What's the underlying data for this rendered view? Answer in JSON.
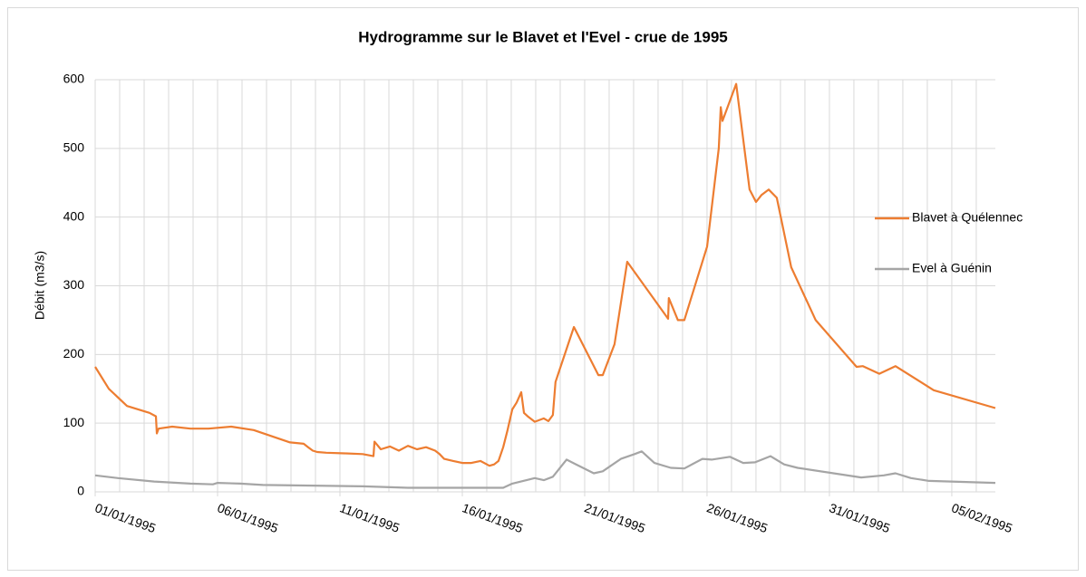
{
  "chart_data": {
    "type": "line",
    "title": "Hydrogramme sur le Blavet et l'Evel - crue de 1995",
    "y_label": "Débit (m3/s)",
    "xlim": [
      0,
      36.78
    ],
    "xticks": [
      {
        "value": 0,
        "label": "01/01/1995"
      },
      {
        "value": 5,
        "label": "06/01/1995"
      },
      {
        "value": 10,
        "label": "11/01/1995"
      },
      {
        "value": 15,
        "label": "16/01/1995"
      },
      {
        "value": 20,
        "label": "21/01/1995"
      },
      {
        "value": 25,
        "label": "26/01/1995"
      },
      {
        "value": 30,
        "label": "31/01/1995"
      },
      {
        "value": 35,
        "label": "05/02/1995"
      }
    ],
    "xminor": [
      0,
      1,
      2,
      3,
      4,
      5,
      6,
      7,
      8,
      9,
      10,
      11,
      12,
      13,
      14,
      15,
      16,
      17,
      18,
      19,
      20,
      21,
      22,
      23,
      24,
      25,
      26,
      27,
      28,
      29,
      30,
      31,
      32,
      33,
      34,
      35,
      36
    ],
    "ylim": [
      0,
      600
    ],
    "yticks": [
      0,
      100,
      200,
      300,
      400,
      500,
      600
    ],
    "grid": true,
    "legend": "right",
    "series": [
      {
        "name": "Blavet à Quélennec",
        "color": "#ed7d31",
        "x": [
          0,
          0.56,
          1.3,
          2.22,
          2.48,
          2.52,
          2.59,
          3.15,
          3.89,
          4.63,
          5.56,
          6.48,
          7.96,
          8.52,
          8.7,
          8.89,
          9.07,
          9.44,
          10.19,
          10.93,
          11.37,
          11.41,
          11.67,
          12.04,
          12.41,
          12.78,
          13.15,
          13.52,
          13.89,
          14.07,
          14.26,
          14.63,
          15.0,
          15.37,
          15.74,
          16.11,
          16.3,
          16.48,
          16.67,
          16.85,
          17.04,
          17.22,
          17.41,
          17.52,
          17.67,
          17.96,
          18.33,
          18.52,
          18.7,
          18.81,
          19.56,
          20.56,
          20.74,
          21.22,
          21.74,
          23.41,
          23.44,
          23.81,
          24.07,
          25.0,
          25.48,
          25.56,
          25.63,
          26.19,
          26.74,
          27.0,
          27.22,
          27.52,
          27.85,
          28.44,
          29.44,
          31.11,
          31.37,
          32.04,
          32.7,
          34.26,
          36.78
        ],
        "values": [
          182,
          150,
          125,
          115,
          110,
          85,
          92,
          95,
          92,
          92,
          95,
          90,
          72,
          70,
          65,
          60,
          58,
          57,
          56,
          55,
          52,
          73,
          62,
          66,
          60,
          67,
          62,
          65,
          60,
          55,
          48,
          45,
          42,
          42,
          45,
          38,
          40,
          45,
          65,
          90,
          120,
          130,
          145,
          115,
          110,
          102,
          107,
          103,
          112,
          160,
          240,
          170,
          170,
          215,
          335,
          252,
          282,
          250,
          250,
          357,
          500,
          560,
          540,
          594,
          440,
          422,
          432,
          440,
          428,
          327,
          250,
          182,
          183,
          172,
          183,
          148,
          122
        ]
      },
      {
        "name": "Evel à Guénin",
        "color": "#a5a5a5",
        "x": [
          0,
          0.93,
          2.41,
          3.89,
          4.81,
          5.0,
          5.93,
          6.85,
          10.93,
          12.78,
          16.67,
          17.04,
          17.96,
          18.33,
          18.7,
          19.26,
          19.81,
          20.37,
          20.74,
          21.48,
          22.04,
          22.33,
          22.85,
          23.52,
          24.07,
          24.81,
          25.19,
          25.93,
          26.48,
          26.96,
          27.59,
          28.15,
          28.7,
          31.3,
          32.22,
          32.7,
          33.33,
          34.07,
          36.78
        ],
        "values": [
          24,
          20,
          15,
          12,
          11,
          13,
          12,
          10,
          8,
          6,
          6,
          12,
          20,
          17,
          22,
          47,
          37,
          27,
          30,
          48,
          55,
          59,
          42,
          35,
          34,
          48,
          47,
          51,
          42,
          43,
          52,
          40,
          35,
          21,
          24,
          27,
          20,
          16,
          13
        ]
      }
    ]
  }
}
